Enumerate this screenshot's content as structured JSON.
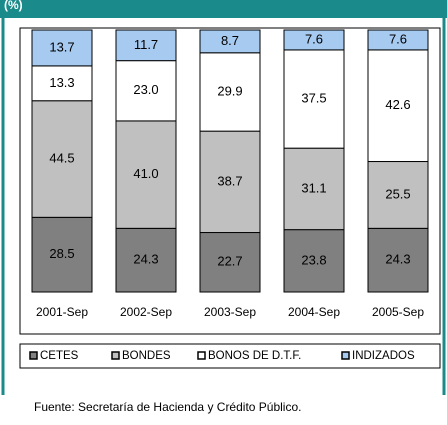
{
  "chart_data": {
    "type": "stacked_bar",
    "subtitle": "(%)",
    "categories": [
      "2001-Sep",
      "2002-Sep",
      "2003-Sep",
      "2004-Sep",
      "2005-Sep"
    ],
    "series": [
      {
        "name": "CETES",
        "color": "#808080",
        "values": [
          28.5,
          24.3,
          22.7,
          23.8,
          24.3
        ],
        "value_labels": [
          "28.5",
          "24.3",
          "22.7",
          "23.8",
          "24.3"
        ]
      },
      {
        "name": "BONDES",
        "color": "#c0c0c0",
        "values": [
          44.5,
          41.0,
          38.7,
          31.1,
          25.5
        ],
        "value_labels": [
          "44.5",
          "41.0",
          "38.7",
          "31.1",
          "25.5"
        ]
      },
      {
        "name": "BONOS DE D.T.F.",
        "color": "#ffffff",
        "values": [
          13.3,
          23.0,
          29.9,
          37.5,
          42.6
        ],
        "value_labels": [
          "13.3",
          "23.0",
          "29.9",
          "37.5",
          "42.6"
        ]
      },
      {
        "name": "INDIZADOS",
        "color": "#a6caf0",
        "values": [
          13.7,
          11.7,
          8.7,
          7.6,
          7.6
        ],
        "value_labels": [
          "13.7",
          "11.7",
          "8.7",
          "7.6",
          "7.6"
        ]
      }
    ],
    "ylim": [
      0,
      100
    ],
    "note": "Fuente: Secretaría de Hacienda y Crédito Público."
  }
}
